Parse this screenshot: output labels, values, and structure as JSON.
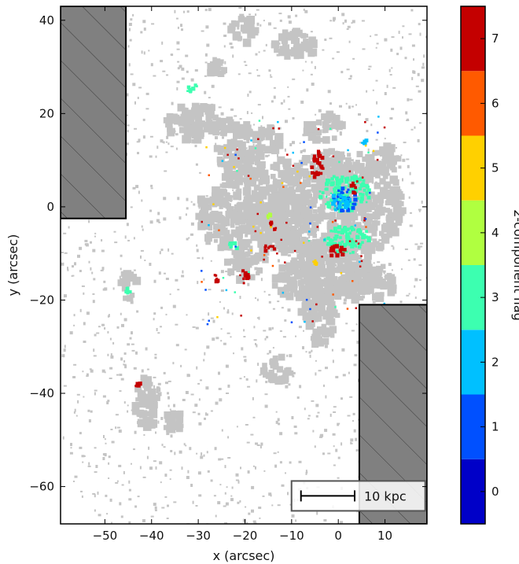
{
  "chart_data": {
    "type": "heatmap",
    "xlabel": "x (arcsec)",
    "ylabel": "y (arcsec)",
    "xlim": [
      -59.5,
      19
    ],
    "ylim": [
      -68,
      43
    ],
    "x_ticks": [
      -50,
      -40,
      -30,
      -20,
      -10,
      0,
      10
    ],
    "x_tick_labels": [
      "−50",
      "−40",
      "−30",
      "−20",
      "−10",
      "0",
      "10"
    ],
    "y_ticks": [
      40,
      20,
      0,
      -20,
      -40,
      -60
    ],
    "y_tick_labels": [
      "40",
      "20",
      "0",
      "−20",
      "−40",
      "−60"
    ],
    "grid": false,
    "masked_regions": [
      {
        "x": [
          -59.5,
          -45.5
        ],
        "y": [
          -2.5,
          43
        ],
        "fill": "#808080",
        "hatch": "diagonal"
      },
      {
        "x": [
          4.5,
          19
        ],
        "y": [
          -68,
          -21
        ],
        "fill": "#808080",
        "hatch": "diagonal"
      }
    ],
    "scale_bar": {
      "label": "10 kpc",
      "x_start": -8,
      "x_end": 3.5,
      "y": -62
    },
    "background_color": "#c4c4c4",
    "colorbar": {
      "label": "2-component flag",
      "ticks": [
        0,
        1,
        2,
        3,
        4,
        5,
        6,
        7
      ],
      "tick_labels": [
        "0",
        "1",
        "2",
        "3",
        "4",
        "5",
        "6",
        "7"
      ],
      "range": [
        -0.5,
        7.5
      ],
      "colors": [
        "#0000c8",
        "#0050ff",
        "#00c0ff",
        "#3cffb0",
        "#b0ff40",
        "#ffd000",
        "#ff5a00",
        "#c40000"
      ]
    },
    "flagged_clusters": [
      {
        "flag": 3,
        "x": 1.5,
        "y": 3,
        "rx": 5.5,
        "ry": 4
      },
      {
        "flag": 3,
        "x": 2,
        "y": -7,
        "rx": 5,
        "ry": 3
      },
      {
        "flag": 1,
        "x": 1.5,
        "y": 1.5,
        "rx": 2.5,
        "ry": 2.5
      },
      {
        "flag": 2,
        "x": 0.5,
        "y": 1,
        "rx": 2,
        "ry": 2
      },
      {
        "flag": 7,
        "x": -4.5,
        "y": 9,
        "rx": 1.5,
        "ry": 3
      },
      {
        "flag": 7,
        "x": -0.5,
        "y": -9.5,
        "rx": 2.5,
        "ry": 1.2
      },
      {
        "flag": 7,
        "x": -15,
        "y": -9,
        "rx": 1.6,
        "ry": 0.9
      },
      {
        "flag": 7,
        "x": -14,
        "y": -4,
        "rx": 1.0,
        "ry": 1.0
      },
      {
        "flag": 7,
        "x": -20,
        "y": -15,
        "rx": 0.8,
        "ry": 1.6
      },
      {
        "flag": 7,
        "x": -26,
        "y": -15,
        "rx": 0.7,
        "ry": 1.2
      },
      {
        "flag": 7,
        "x": 3.5,
        "y": 4.5,
        "rx": 0.7,
        "ry": 1.6
      },
      {
        "flag": 3,
        "x": -31.5,
        "y": 25.5,
        "rx": 1.3,
        "ry": 1.0
      },
      {
        "flag": 3,
        "x": -22.5,
        "y": -8.5,
        "rx": 1.0,
        "ry": 0.8
      },
      {
        "flag": 4,
        "x": -15,
        "y": -2,
        "rx": 0.6,
        "ry": 0.6
      },
      {
        "flag": 5,
        "x": -5,
        "y": -12,
        "rx": 0.5,
        "ry": 0.5
      },
      {
        "flag": 2,
        "x": 5.5,
        "y": 14,
        "rx": 0.6,
        "ry": 0.6
      },
      {
        "flag": 7,
        "x": -43,
        "y": -38,
        "rx": 0.6,
        "ry": 0.8
      },
      {
        "flag": 3,
        "x": -45,
        "y": -18,
        "rx": 0.6,
        "ry": 0.6
      }
    ]
  },
  "axes": {
    "xlabel": "x (arcsec)",
    "ylabel": "y (arcsec)"
  },
  "colorbar": {
    "label": "2-component flag"
  },
  "scale_bar": {
    "label": "10 kpc"
  }
}
